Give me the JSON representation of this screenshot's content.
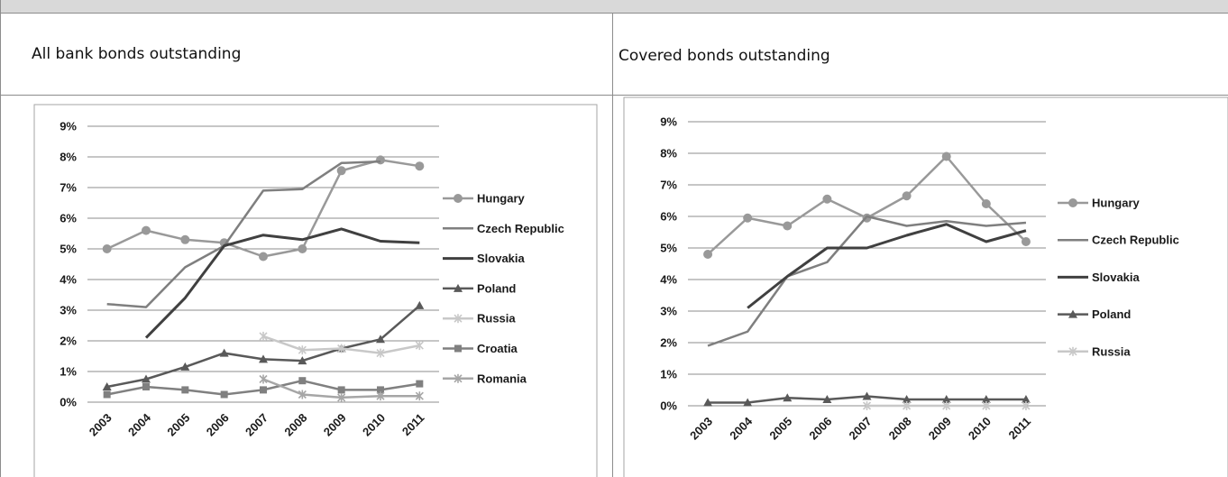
{
  "panels": {
    "left_title": "All bank bonds outstanding",
    "right_title": "Covered bonds outstanding"
  },
  "chart_data": [
    {
      "type": "line",
      "title": "All bank bonds outstanding",
      "categories": [
        "2003",
        "2004",
        "2005",
        "2006",
        "2007",
        "2008",
        "2009",
        "2010",
        "2011"
      ],
      "ylim": [
        0,
        9
      ],
      "yticks": [
        "0%",
        "1%",
        "2%",
        "3%",
        "4%",
        "5%",
        "6%",
        "7%",
        "8%",
        "9%"
      ],
      "grid": true,
      "legend_position": "right",
      "series": [
        {
          "name": "Hungary",
          "color": "#999999",
          "marker": "circle",
          "width": 2.5,
          "values": [
            5.0,
            5.6,
            5.3,
            5.2,
            4.75,
            5.0,
            7.55,
            7.9,
            7.7
          ]
        },
        {
          "name": "Czech Republic",
          "color": "#7f7f7f",
          "marker": "none",
          "width": 2.5,
          "values": [
            3.2,
            3.1,
            4.4,
            5.1,
            6.9,
            6.95,
            7.8,
            7.85,
            null
          ]
        },
        {
          "name": "Slovakia",
          "color": "#404040",
          "marker": "none",
          "width": 3,
          "values": [
            null,
            2.1,
            3.4,
            5.1,
            5.45,
            5.3,
            5.65,
            5.25,
            5.2
          ]
        },
        {
          "name": "Poland",
          "color": "#595959",
          "marker": "triangle",
          "width": 2.5,
          "values": [
            0.5,
            0.75,
            1.15,
            1.6,
            1.4,
            1.35,
            1.75,
            2.05,
            3.15
          ]
        },
        {
          "name": "Russia",
          "color": "#c8c8c8",
          "marker": "asterisk",
          "width": 2.5,
          "values": [
            null,
            null,
            null,
            null,
            2.15,
            1.7,
            1.75,
            1.6,
            1.85
          ]
        },
        {
          "name": "Croatia",
          "color": "#808080",
          "marker": "square",
          "width": 2.5,
          "values": [
            0.25,
            0.5,
            0.4,
            0.25,
            0.4,
            0.7,
            0.4,
            0.4,
            0.6
          ]
        },
        {
          "name": "Romania",
          "color": "#a6a6a6",
          "marker": "asterisk",
          "width": 2.5,
          "values": [
            null,
            null,
            null,
            null,
            0.75,
            0.25,
            0.15,
            0.2,
            0.2
          ]
        }
      ]
    },
    {
      "type": "line",
      "title": "Covered bonds outstanding",
      "categories": [
        "2003",
        "2004",
        "2005",
        "2006",
        "2007",
        "2008",
        "2009",
        "2010",
        "2011"
      ],
      "ylim": [
        0,
        9
      ],
      "yticks": [
        "0%",
        "1%",
        "2%",
        "3%",
        "4%",
        "5%",
        "6%",
        "7%",
        "8%",
        "9%"
      ],
      "grid": true,
      "legend_position": "right",
      "series": [
        {
          "name": "Hungary",
          "color": "#999999",
          "marker": "circle",
          "width": 2.5,
          "values": [
            4.8,
            5.95,
            5.7,
            6.55,
            5.95,
            6.65,
            7.9,
            6.4,
            5.2
          ]
        },
        {
          "name": "Czech Republic",
          "color": "#7f7f7f",
          "marker": "none",
          "width": 2.5,
          "values": [
            1.9,
            2.35,
            4.1,
            4.55,
            6.0,
            5.7,
            5.85,
            5.7,
            5.8
          ]
        },
        {
          "name": "Slovakia",
          "color": "#404040",
          "marker": "none",
          "width": 3,
          "values": [
            null,
            3.1,
            4.1,
            5.0,
            5.0,
            5.4,
            5.75,
            5.2,
            5.55
          ]
        },
        {
          "name": "Poland",
          "color": "#595959",
          "marker": "triangle",
          "width": 2.5,
          "values": [
            0.1,
            0.1,
            0.25,
            0.2,
            0.3,
            0.2,
            0.2,
            0.2,
            0.2
          ]
        },
        {
          "name": "Russia",
          "color": "#c8c8c8",
          "marker": "asterisk",
          "width": 2.5,
          "values": [
            null,
            null,
            null,
            null,
            0.0,
            0.0,
            0.0,
            0.0,
            0.0
          ]
        }
      ]
    }
  ]
}
